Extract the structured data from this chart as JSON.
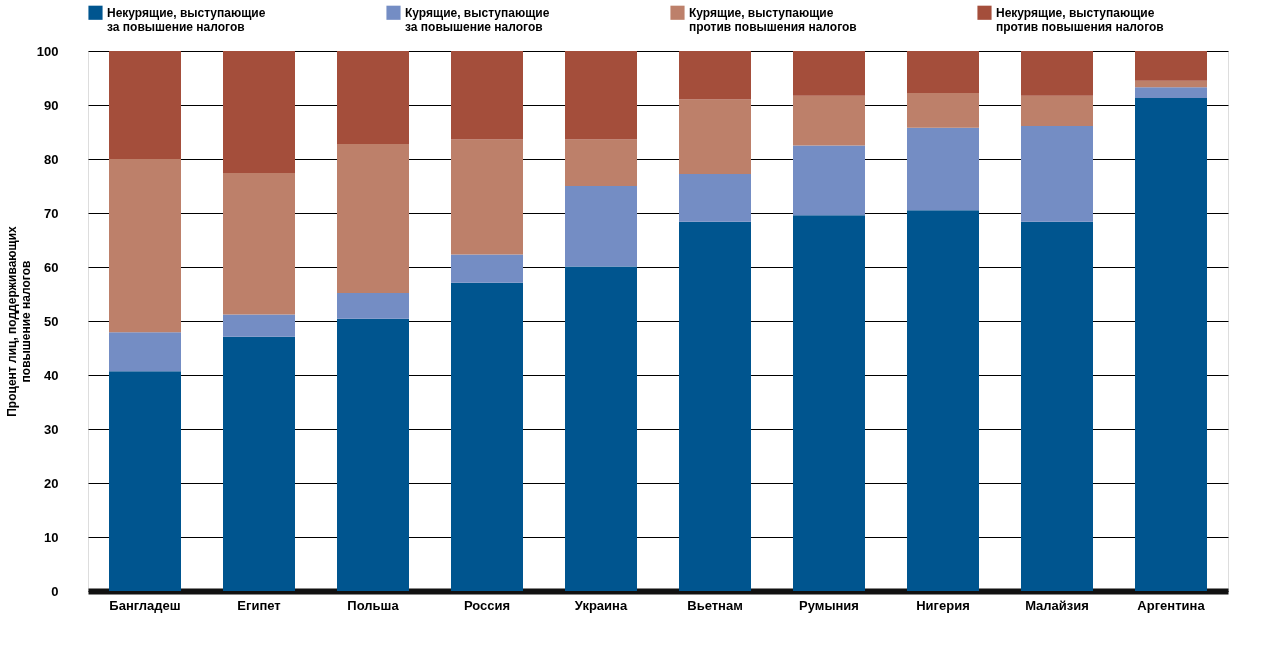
{
  "chart_data": {
    "type": "bar",
    "stacked": true,
    "ylabel": "Процент лиц, поддерживающих повышение налогов",
    "categories": [
      "Бангладеш",
      "Египет",
      "Польша",
      "Россия",
      "Украина",
      "Вьетнам",
      "Румыния",
      "Нигерия",
      "Малайзия",
      "Аргентина"
    ],
    "series": [
      {
        "name": "Некурящие, выступающие за повышение налогов",
        "color": "#00558f",
        "values": [
          40.7,
          47.1,
          50.4,
          57.1,
          60.1,
          68.4,
          69.6,
          70.5,
          68.4,
          91.3
        ]
      },
      {
        "name": "Курящие, выступающие за повышение налогов",
        "color": "#748dc4",
        "values": [
          7.2,
          4.1,
          4.8,
          5.2,
          14.9,
          8.8,
          12.9,
          15.3,
          17.7,
          2.0
        ]
      },
      {
        "name": "Курящие, выступающие против повышения налогов",
        "color": "#bd806a",
        "values": [
          32.1,
          26.2,
          27.6,
          21.3,
          8.6,
          13.8,
          9.2,
          6.4,
          5.6,
          1.2
        ]
      },
      {
        "name": "Некурящие, выступающие против повышения налогов",
        "color": "#a44e3b",
        "values": [
          20.0,
          22.6,
          17.2,
          16.4,
          16.4,
          9.0,
          8.3,
          7.8,
          8.3,
          5.5
        ]
      }
    ],
    "ylim": [
      0,
      100
    ],
    "yticks": [
      0,
      10,
      20,
      30,
      40,
      50,
      60,
      70,
      80,
      90,
      100
    ],
    "grid": "y",
    "legend": "top"
  }
}
